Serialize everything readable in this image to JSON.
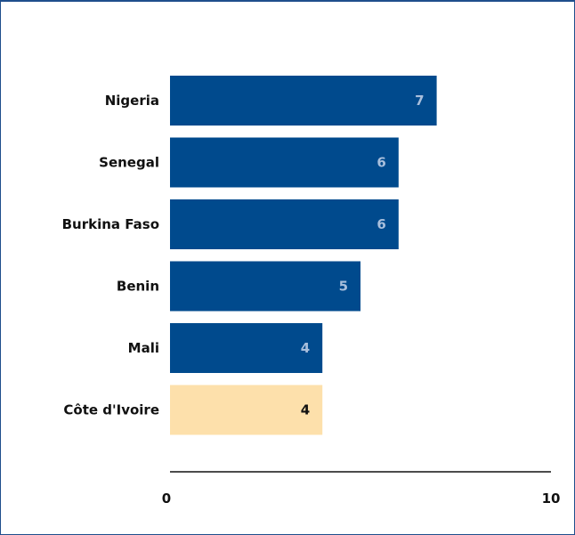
{
  "chart_data": {
    "type": "bar",
    "orientation": "horizontal",
    "categories": [
      "Nigeria",
      "Senegal",
      "Burkina Faso",
      "Benin",
      "Mali",
      "Côte d'Ivoire"
    ],
    "values": [
      7,
      6,
      6,
      5,
      4,
      4
    ],
    "value_labels": [
      "7",
      "6",
      "6",
      "5",
      "4",
      "4"
    ],
    "highlight_index": 5,
    "xlim": [
      0,
      10
    ],
    "x_ticks": [
      "0",
      "10"
    ],
    "grid": false,
    "colors": {
      "bar": "#004a8d",
      "highlight_bar": "#fde0ab",
      "label_on_bar": "#a9bfdc",
      "label_on_highlight": "#111111",
      "frame": "#1f4e8c"
    }
  }
}
